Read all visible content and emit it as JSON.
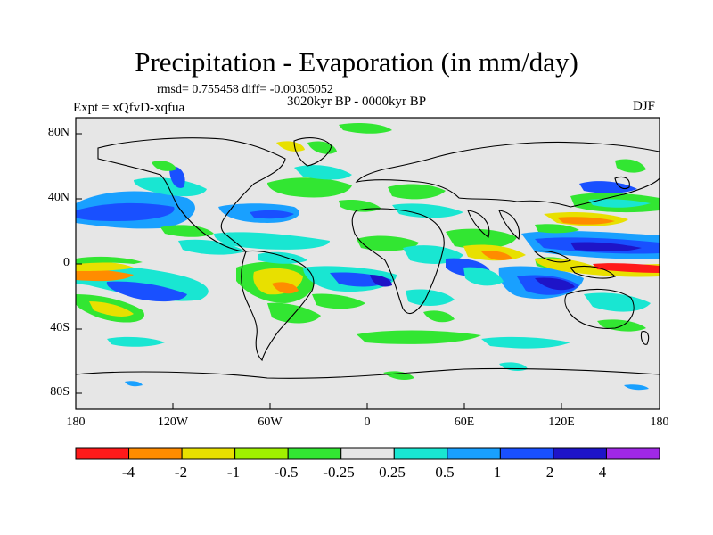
{
  "title": "Precipitation - Evaporation (in mm/day)",
  "stats_line": "rmsd= 0.755458  diff= -0.00305052",
  "period": "3020kyr BP - 0000kyr BP",
  "experiment": "Expt = xQfvD-xqfua",
  "season": "DJF",
  "map": {
    "lon_ticks": [
      "180",
      "120W",
      "60W",
      "0",
      "60E",
      "120E",
      "180"
    ],
    "lat_ticks": [
      "80N",
      "40N",
      "0",
      "40S",
      "80S"
    ],
    "background_color": "#e6e6e6"
  },
  "colorbar": {
    "colors": [
      "#ff1a1a",
      "#ff8c00",
      "#e8e000",
      "#a0f000",
      "#32e632",
      "#e6e6e6",
      "#19e6d2",
      "#19a0ff",
      "#1950ff",
      "#1e14c8",
      "#a028e6"
    ],
    "labels": [
      "-4",
      "-2",
      "-1",
      "-0.5",
      "-0.25",
      "0.25",
      "0.5",
      "1",
      "2",
      "4"
    ]
  }
}
